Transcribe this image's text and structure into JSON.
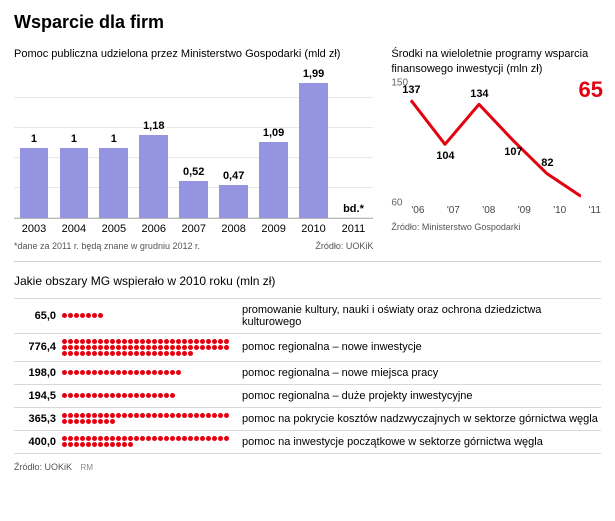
{
  "title": "Wsparcie dla firm",
  "bar_chart": {
    "title": "Pomoc publiczna udzielona przez Ministerstwo Gospodarki (mld zł)",
    "type": "bar",
    "categories": [
      "2003",
      "2004",
      "2005",
      "2006",
      "2007",
      "2008",
      "2009",
      "2010",
      "2011"
    ],
    "labels": [
      "1",
      "1",
      "1",
      "1,18",
      "0,52",
      "0,47",
      "1,09",
      "1,99",
      "bd.*"
    ],
    "values": [
      1.0,
      1.0,
      1.0,
      1.18,
      0.52,
      0.47,
      1.09,
      1.99,
      0.0
    ],
    "bar_color": "#9494e0",
    "grid_color": "#e8e8e8",
    "ylim": [
      0,
      2.0
    ],
    "footnote": "*dane za 2011 r. będą znane w grudniu 2012 r.",
    "source": "Źródło: UOKiK"
  },
  "line_chart": {
    "title": "Środki na wieloletnie programy wsparcia finansowego inwestycji (mln zł)",
    "type": "line",
    "categories": [
      "'06",
      "'07",
      "'08",
      "'09",
      "'10",
      "'11"
    ],
    "values": [
      137,
      104,
      134,
      107,
      82,
      65
    ],
    "line_color": "#e3000f",
    "highlight_value": "65",
    "ylim": [
      60,
      150
    ],
    "yticks": [
      60,
      150
    ],
    "source": "Źródło: Ministerstwo Gospodarki"
  },
  "dot_section": {
    "title": "Jakie obszary MG wspierało w 2010 roku (mln zł)",
    "dot_color": "#e3000f",
    "rows": [
      {
        "value": "65,0",
        "dots": 7,
        "desc": "promowanie kultury, nauki i oświaty oraz ochrona dziedzictwa kulturowego"
      },
      {
        "value": "776,4",
        "dots": 78,
        "desc": "pomoc regionalna – nowe inwestycje"
      },
      {
        "value": "198,0",
        "dots": 20,
        "desc": "pomoc regionalna – nowe miejsca pracy"
      },
      {
        "value": "194,5",
        "dots": 19,
        "desc": "pomoc regionalna – duże projekty inwestycyjne"
      },
      {
        "value": "365,3",
        "dots": 37,
        "desc": "pomoc na pokrycie kosztów nadzwyczajnych w sektorze górnictwa węgla"
      },
      {
        "value": "400,0",
        "dots": 40,
        "desc": "pomoc na inwestycje początkowe w sektorze górnictwa węgla"
      }
    ],
    "source": "Źródło: UOKiK",
    "mark": "RM"
  }
}
